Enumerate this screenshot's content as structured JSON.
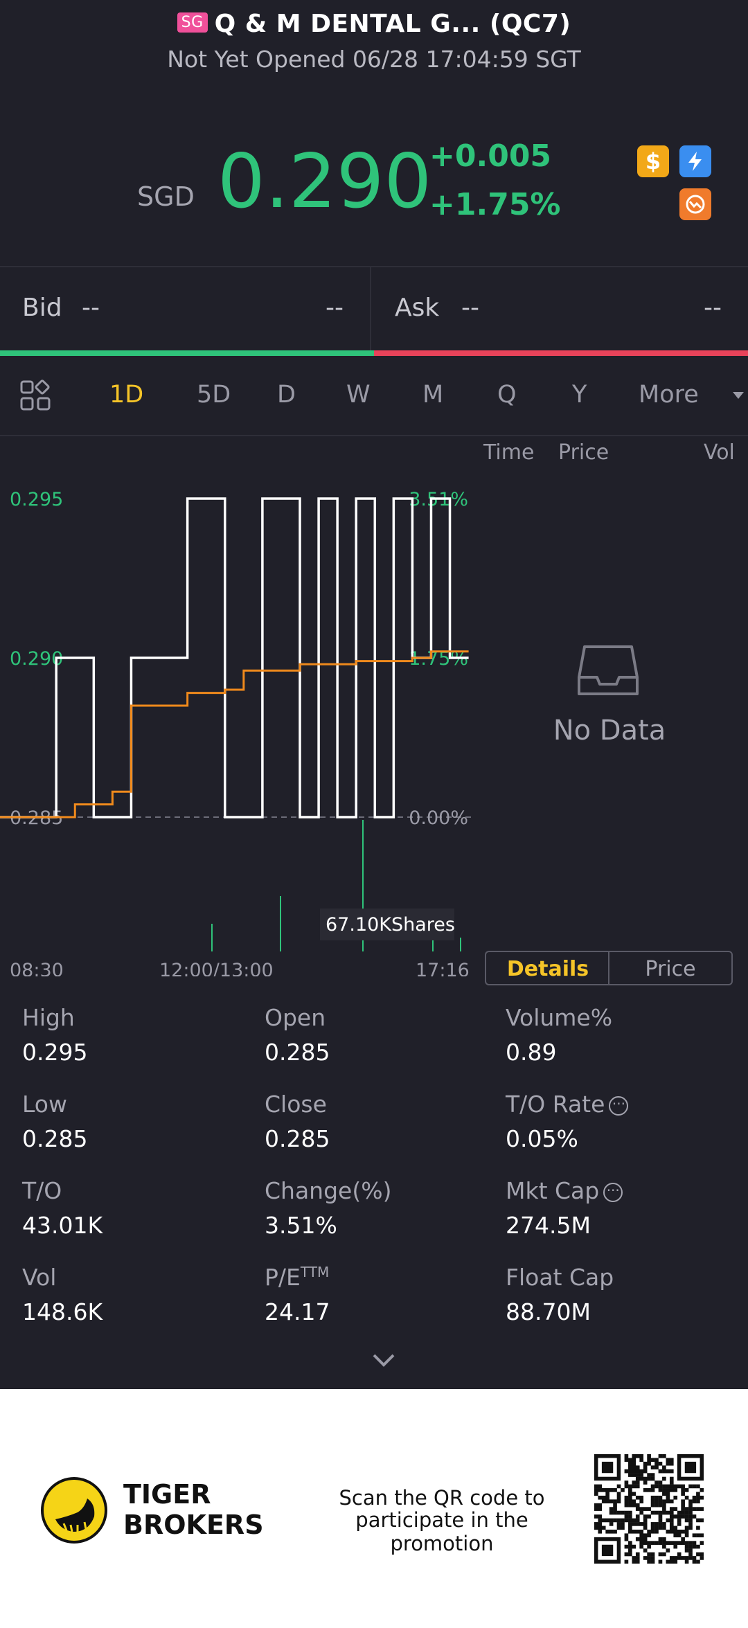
{
  "header": {
    "market_badge": "SG",
    "title": "Q & M DENTAL G... (QC7)",
    "subtitle": "Not Yet Opened 06/28 17:04:59 SGT"
  },
  "quote": {
    "currency": "SGD",
    "price": "0.290",
    "change": "+0.005",
    "change_pct": "+1.75%",
    "icons": [
      "dollar-icon",
      "lightning-icon",
      "options-icon"
    ],
    "up_color": "#2fc37a"
  },
  "bid_ask": {
    "bid_label": "Bid",
    "bid_price": "--",
    "bid_size": "--",
    "ask_label": "Ask",
    "ask_price": "--",
    "ask_size": "--",
    "bid_color": "#2fc37a",
    "ask_color": "#e8435a"
  },
  "tabs": {
    "items": [
      "1D",
      "5D",
      "D",
      "W",
      "M",
      "Q",
      "Y",
      "More"
    ],
    "active": "1D"
  },
  "chart_header": {
    "time": "Time",
    "price": "Price",
    "vol": "Vol"
  },
  "chart_data": {
    "type": "line",
    "y_ticks": [
      "0.295",
      "0.290",
      "0.285"
    ],
    "pct_ticks": [
      "3.51%",
      "1.75%",
      "0.00%"
    ],
    "x_ticks": [
      "08:30",
      "12:00/13:00",
      "17:16"
    ],
    "ylim": [
      0.285,
      0.295
    ],
    "volume_tooltip": "67.10KShares",
    "series": [
      {
        "color": "#ffffff",
        "values": [
          0.285,
          0.285,
          0.285,
          0.29,
          0.29,
          0.285,
          0.285,
          0.29,
          0.29,
          0.29,
          0.295,
          0.295,
          0.285,
          0.285,
          0.295,
          0.295,
          0.285,
          0.295,
          0.285,
          0.295,
          0.285,
          0.295,
          0.29,
          0.295,
          0.29,
          0.29
        ]
      },
      {
        "color": "#f08a1c",
        "values": [
          0.285,
          0.285,
          0.285,
          0.285,
          0.2854,
          0.2854,
          0.2858,
          0.2885,
          0.2885,
          0.2885,
          0.2889,
          0.2889,
          0.289,
          0.2896,
          0.2896,
          0.2896,
          0.2898,
          0.2898,
          0.2898,
          0.2899,
          0.2899,
          0.2899,
          0.29,
          0.2902,
          0.2902,
          0.2902
        ]
      }
    ]
  },
  "side_panel": {
    "no_data": "No Data",
    "details_label": "Details",
    "price_label": "Price"
  },
  "stats": [
    {
      "label": "High",
      "value": "0.295"
    },
    {
      "label": "Open",
      "value": "0.285"
    },
    {
      "label": "Volume%",
      "value": "0.89"
    },
    {
      "label": "Low",
      "value": "0.285"
    },
    {
      "label": "Close",
      "value": "0.285"
    },
    {
      "label": "T/O Rate",
      "value": "0.05%"
    },
    {
      "label": "T/O",
      "value": "43.01K"
    },
    {
      "label": "Change(%)",
      "value": "3.51%"
    },
    {
      "label": "Mkt Cap",
      "value": "274.5M"
    },
    {
      "label": "Vol",
      "value": "148.6K"
    },
    {
      "label": "P/E",
      "label_sup": "TTM",
      "value": "24.17"
    },
    {
      "label": "Float Cap",
      "value": "88.70M"
    }
  ],
  "footer": {
    "brand_line1": "TIGER",
    "brand_line2": "BROKERS",
    "promo_line1": "Scan the QR code to",
    "promo_line2": "participate in the promotion",
    "brand_color": "#f5c428"
  }
}
